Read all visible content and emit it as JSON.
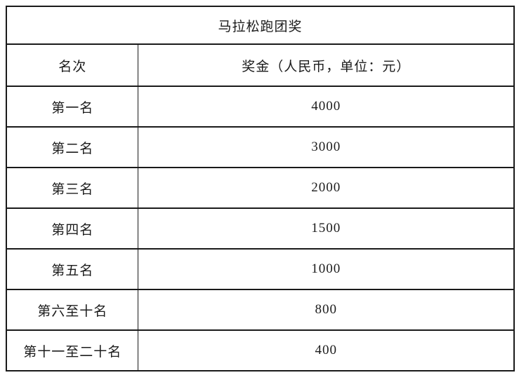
{
  "table": {
    "title": "马拉松跑团奖",
    "columns": {
      "rank": "名次",
      "prize": "奖金（人民币，单位：元）"
    },
    "rows": [
      {
        "rank": "第一名",
        "prize": "4000"
      },
      {
        "rank": "第二名",
        "prize": "3000"
      },
      {
        "rank": "第三名",
        "prize": "2000"
      },
      {
        "rank": "第四名",
        "prize": "1500"
      },
      {
        "rank": "第五名",
        "prize": "1000"
      },
      {
        "rank": "第六至十名",
        "prize": "800"
      },
      {
        "rank": "第十一至二十名",
        "prize": "400"
      }
    ]
  }
}
